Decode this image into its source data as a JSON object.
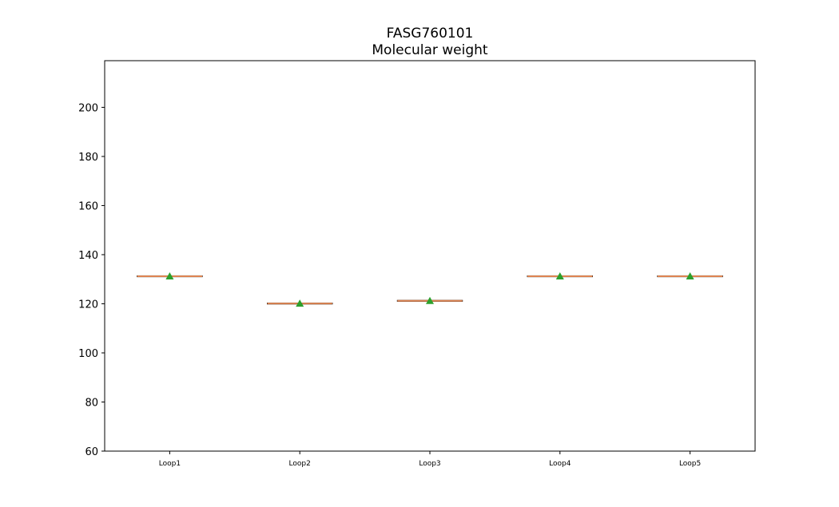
{
  "chart_data": {
    "type": "box",
    "title": "FASG760101",
    "subtitle": "Molecular weight",
    "xlabel": "",
    "ylabel": "",
    "ylim": [
      60,
      219
    ],
    "yticks": [
      60,
      80,
      100,
      120,
      140,
      160,
      180,
      200
    ],
    "categories": [
      "Loop1",
      "Loop2",
      "Loop3",
      "Loop4",
      "Loop5"
    ],
    "medians": [
      131.2,
      120.1,
      121.2,
      131.2,
      131.2
    ],
    "means": [
      131.2,
      120.1,
      121.2,
      131.2,
      131.2
    ],
    "grid": false,
    "colors": {
      "median": "#dd8452",
      "mean_marker": "#2ca02c",
      "box": "#000000"
    }
  }
}
